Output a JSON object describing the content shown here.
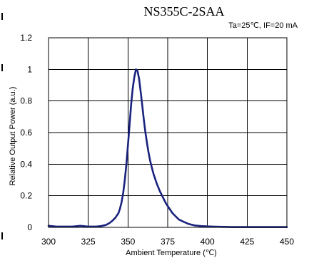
{
  "chart_data": {
    "type": "line",
    "title": "NS355C-2SAA",
    "condition": "Ta=25℃, IF=20 mA",
    "xlabel": "Ambient Temperature (℃)",
    "ylabel": "Relative Output Power (a.u.)",
    "xlim": [
      300,
      450
    ],
    "ylim": [
      0,
      1.2
    ],
    "xticks": [
      300,
      325,
      350,
      375,
      400,
      425,
      450
    ],
    "yticks": [
      0,
      0.2,
      0.4,
      0.6,
      0.8,
      1,
      1.2
    ],
    "xtick_labels": [
      "300",
      "325",
      "350",
      "375",
      "400",
      "425",
      "450"
    ],
    "ytick_labels": [
      "0",
      "0.2",
      "0.4",
      "0.6",
      "0.8",
      "1",
      "1.2"
    ],
    "grid": true,
    "series": [
      {
        "color": "#1a237e",
        "x": [
          300,
          305,
          310,
          315,
          320,
          325,
          330,
          333,
          336,
          338,
          340,
          342,
          344,
          345,
          346,
          347,
          348,
          349,
          350,
          351,
          352,
          353,
          354,
          355,
          356,
          357,
          358,
          359,
          360,
          361,
          362,
          363,
          364,
          365,
          366,
          368,
          370,
          372,
          374,
          376,
          378,
          380,
          382,
          385,
          388,
          392,
          396,
          400,
          405,
          410,
          415,
          420,
          425,
          430,
          435,
          440,
          445,
          450
        ],
        "y": [
          0.01,
          0.005,
          0.005,
          0.005,
          0.01,
          0.005,
          0.005,
          0.008,
          0.015,
          0.025,
          0.04,
          0.06,
          0.09,
          0.12,
          0.16,
          0.22,
          0.3,
          0.4,
          0.52,
          0.65,
          0.78,
          0.88,
          0.95,
          1.0,
          0.99,
          0.94,
          0.86,
          0.77,
          0.68,
          0.6,
          0.53,
          0.47,
          0.42,
          0.38,
          0.34,
          0.28,
          0.23,
          0.19,
          0.15,
          0.12,
          0.09,
          0.07,
          0.05,
          0.035,
          0.022,
          0.012,
          0.008,
          0.006,
          0.004,
          0.003,
          0.002,
          0.002,
          0.002,
          0.002,
          0.002,
          0.002,
          0.002,
          0.002
        ]
      }
    ]
  }
}
